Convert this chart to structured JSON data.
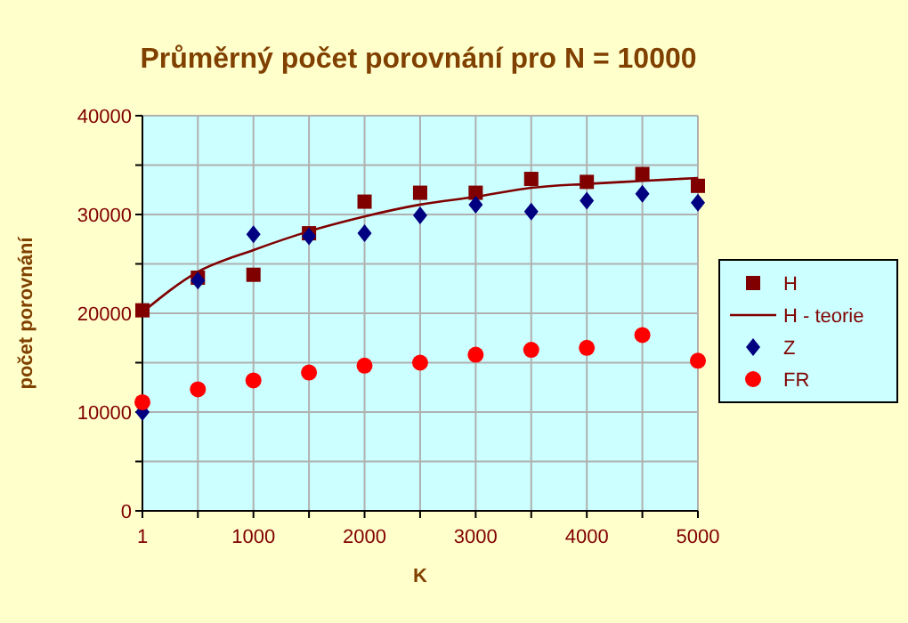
{
  "chart_data": {
    "type": "scatter",
    "title": "Průměrný počet porovnání pro N = 10000",
    "xlabel": "K",
    "ylabel": "počet porovnání",
    "xlim": [
      1,
      5000
    ],
    "ylim": [
      0,
      40000
    ],
    "xticks": [
      1,
      {
        "value": 500,
        "label": null
      },
      1000,
      {
        "value": 1500,
        "label": null
      },
      2000,
      {
        "value": 2500,
        "label": null
      },
      3000,
      {
        "value": 3500,
        "label": null
      },
      4000,
      {
        "value": 4500,
        "label": null
      },
      5000
    ],
    "yticks": [
      0,
      {
        "value": 5000,
        "label": null
      },
      10000,
      {
        "value": 15000,
        "label": null
      },
      20000,
      {
        "value": 25000,
        "label": null
      },
      30000,
      {
        "value": 35000,
        "label": null
      },
      40000
    ],
    "grid": true,
    "legend": "right",
    "series": [
      {
        "name": "H",
        "marker": "square",
        "color": "#800000",
        "x": [
          1,
          500,
          1000,
          1500,
          2000,
          2500,
          3000,
          3500,
          4000,
          4500,
          5000
        ],
        "values": [
          20300,
          23600,
          23900,
          28100,
          31300,
          32200,
          32200,
          33600,
          33300,
          34100,
          32900
        ]
      },
      {
        "name": "H - teorie",
        "type": "line",
        "marker": "none",
        "color": "#800000",
        "x": [
          1,
          500,
          1000,
          1500,
          2000,
          2500,
          3000,
          3500,
          4000,
          4500,
          5000
        ],
        "values": [
          20100,
          24200,
          26400,
          28300,
          29800,
          31000,
          31800,
          32700,
          33100,
          33400,
          33700
        ]
      },
      {
        "name": "Z",
        "marker": "diamond",
        "color": "#000080",
        "x": [
          1,
          500,
          1000,
          1500,
          2000,
          2500,
          3000,
          3500,
          4000,
          4500,
          5000
        ],
        "values": [
          10000,
          23300,
          28000,
          27800,
          28100,
          29900,
          31000,
          30300,
          31400,
          32100,
          31200
        ]
      },
      {
        "name": "FR",
        "marker": "circle",
        "color": "#ff0000",
        "x": [
          1,
          500,
          1000,
          1500,
          2000,
          2500,
          3000,
          3500,
          4000,
          4500,
          5000
        ],
        "values": [
          11000,
          12300,
          13200,
          14000,
          14700,
          15000,
          15800,
          16300,
          16500,
          17800,
          15200
        ]
      }
    ]
  }
}
